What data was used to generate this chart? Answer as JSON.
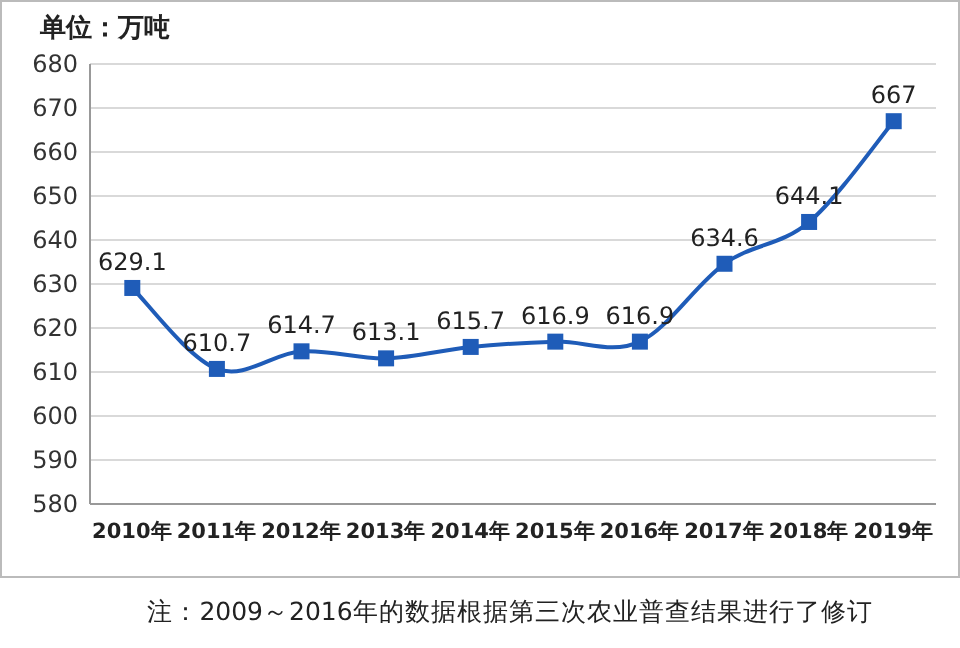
{
  "chart_data": {
    "type": "line",
    "title": "单位：万吨",
    "categories": [
      "2010年",
      "2011年",
      "2012年",
      "2013年",
      "2014年",
      "2015年",
      "2016年",
      "2017年",
      "2018年",
      "2019年"
    ],
    "values": [
      629.1,
      610.7,
      614.7,
      613.1,
      615.7,
      616.9,
      616.9,
      634.6,
      644.1,
      667
    ],
    "color": "#1f5cb8",
    "ylim": [
      580,
      680
    ],
    "yticks": [
      580,
      590,
      600,
      610,
      620,
      630,
      640,
      650,
      660,
      670,
      680
    ],
    "grid": "y",
    "marker": "square",
    "data_labels": true,
    "annotations": [
      "注：2009～2016年的数据根据第三次农业普查结果进行了修订"
    ]
  }
}
